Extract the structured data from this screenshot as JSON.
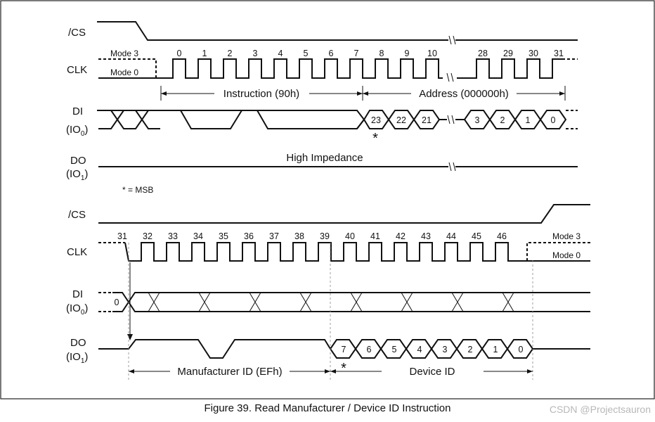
{
  "figure": {
    "caption": "Figure 39. Read Manufacturer / Device ID Instruction",
    "watermark": "CSDN @Projectsauron"
  },
  "top": {
    "signals": {
      "cs": "/CS",
      "clk": "CLK",
      "di": "DI",
      "di_sub": "(IO",
      "di_idx": "0",
      "do": "DO",
      "do_sub": "(IO",
      "do_idx": "1"
    },
    "mode3": "Mode 3",
    "mode0": "Mode 0",
    "clk_numbers": [
      "0",
      "1",
      "2",
      "3",
      "4",
      "5",
      "6",
      "7",
      "8",
      "9",
      "10",
      "28",
      "29",
      "30",
      "31"
    ],
    "instruction_label": "Instruction (90h)",
    "address_label": "Address (000000h)",
    "address_bits": [
      "23",
      "22",
      "21",
      "3",
      "2",
      "1",
      "0"
    ],
    "high_impedance": "High Impedance",
    "msb_star": "*",
    "msb_legend": "* = MSB"
  },
  "bottom": {
    "signals": {
      "cs": "/CS",
      "clk": "CLK",
      "di": "DI",
      "di_sub": "(IO",
      "di_idx": "0",
      "do": "DO",
      "do_sub": "(IO",
      "do_idx": "1"
    },
    "mode3": "Mode 3",
    "mode0": "Mode 0",
    "clk_numbers": [
      "31",
      "32",
      "33",
      "34",
      "35",
      "36",
      "37",
      "38",
      "39",
      "40",
      "41",
      "42",
      "43",
      "44",
      "45",
      "46"
    ],
    "di_bit": "0",
    "data_bits": [
      "7",
      "6",
      "5",
      "4",
      "3",
      "2",
      "1",
      "0"
    ],
    "manufacturer_label": "Manufacturer ID (EFh)",
    "device_label": "Device ID",
    "msb_star": "*"
  }
}
